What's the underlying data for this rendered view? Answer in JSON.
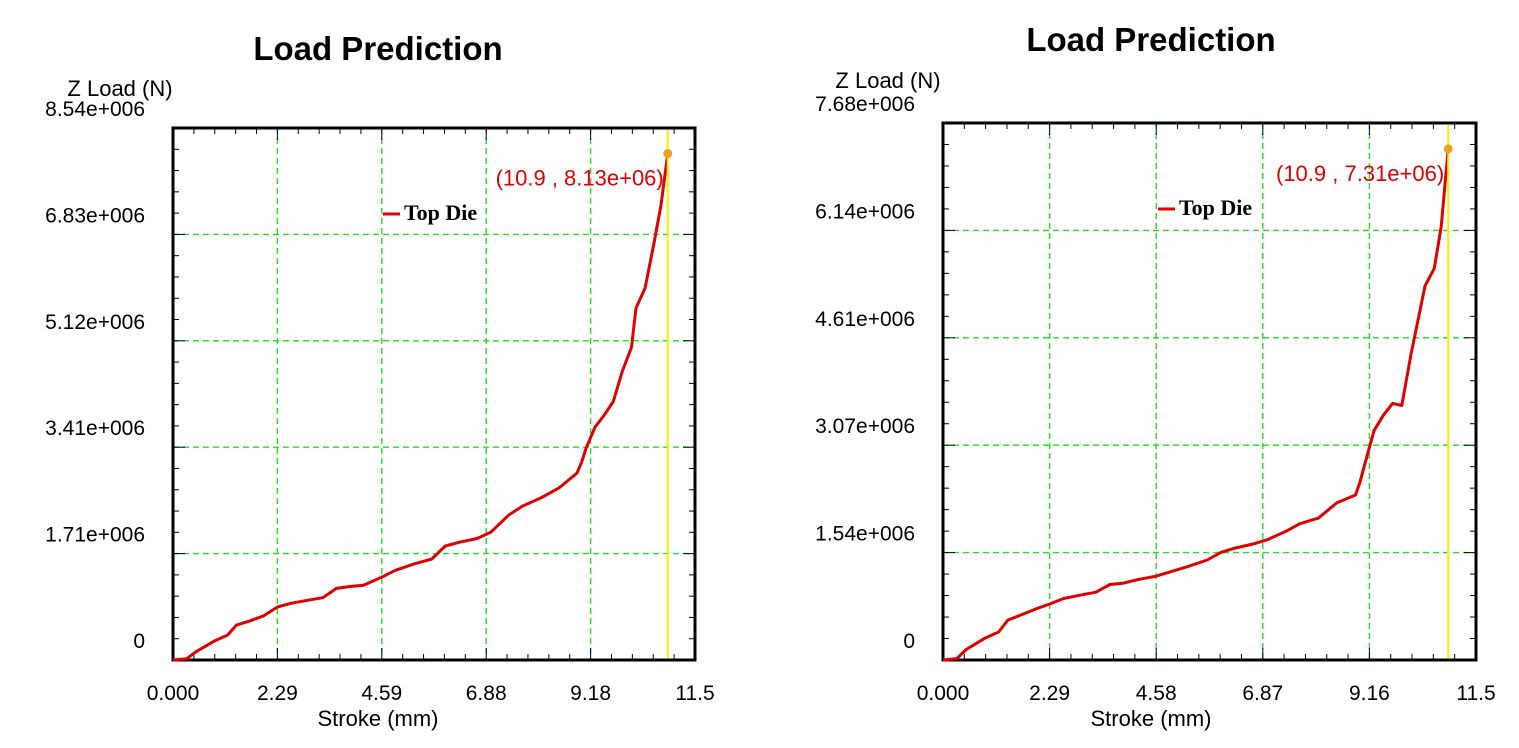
{
  "chart_data": [
    {
      "type": "line",
      "title": "Load Prediction",
      "ylabel": "Z Load (N)",
      "xlabel": "Stroke (mm)",
      "xlim": [
        0,
        11.5
      ],
      "ylim": [
        0,
        8540000
      ],
      "x_ticks": [
        "0.000",
        "2.29",
        "4.59",
        "6.88",
        "9.18",
        "11.5"
      ],
      "y_ticks": [
        "0",
        "1.71e+006",
        "3.41e+006",
        "5.12e+006",
        "6.83e+006",
        "8.54e+006"
      ],
      "grid": true,
      "legend_position": "top-center",
      "series": [
        {
          "name": "Top Die",
          "color": "#e00000",
          "x": [
            0,
            0.3,
            0.5,
            0.9,
            1.2,
            1.4,
            1.7,
            2.0,
            2.3,
            2.6,
            2.9,
            3.3,
            3.6,
            3.9,
            4.2,
            4.6,
            4.9,
            5.3,
            5.7,
            6.0,
            6.3,
            6.7,
            7.0,
            7.4,
            7.7,
            8.1,
            8.5,
            8.9,
            9.0,
            9.1,
            9.3,
            9.5,
            9.7,
            9.9,
            10.1,
            10.2,
            10.4,
            10.6,
            10.75,
            10.9
          ],
          "y": [
            0,
            20000,
            130000,
            300000,
            400000,
            560000,
            630000,
            710000,
            850000,
            910000,
            950000,
            1000000,
            1150000,
            1180000,
            1200000,
            1330000,
            1440000,
            1540000,
            1620000,
            1830000,
            1890000,
            1950000,
            2050000,
            2330000,
            2470000,
            2600000,
            2760000,
            3000000,
            3170000,
            3400000,
            3740000,
            3930000,
            4150000,
            4640000,
            5020000,
            5650000,
            5970000,
            6700000,
            7300000,
            8130000
          ]
        }
      ],
      "annotation": {
        "x": 10.9,
        "y": 8130000,
        "label": "(10.9 , 8.13e+06)",
        "color": "#e00000",
        "marker_color": "#f0a020",
        "line_color": "#f5f000"
      }
    },
    {
      "type": "line",
      "title": "Load Prediction",
      "ylabel": "Z Load (N)",
      "xlabel": "Stroke (mm)",
      "xlim": [
        0,
        11.5
      ],
      "ylim": [
        0,
        7680000
      ],
      "x_ticks": [
        "0.000",
        "2.29",
        "4.58",
        "6.87",
        "9.16",
        "11.5"
      ],
      "y_ticks": [
        "0",
        "1.54e+006",
        "3.07e+006",
        "4.61e+006",
        "6.14e+006",
        "7.68e+006"
      ],
      "grid": true,
      "legend_position": "top-center",
      "series": [
        {
          "name": "Top Die",
          "color": "#e00000",
          "x": [
            0,
            0.3,
            0.5,
            0.9,
            1.2,
            1.4,
            1.7,
            2.0,
            2.3,
            2.6,
            2.9,
            3.3,
            3.6,
            3.9,
            4.2,
            4.6,
            4.9,
            5.3,
            5.7,
            6.0,
            6.3,
            6.7,
            7.0,
            7.4,
            7.7,
            8.1,
            8.5,
            8.9,
            9.0,
            9.1,
            9.3,
            9.5,
            9.7,
            9.9,
            10.1,
            10.2,
            10.4,
            10.6,
            10.75,
            10.9
          ],
          "y": [
            0,
            20000,
            150000,
            310000,
            400000,
            570000,
            650000,
            730000,
            800000,
            880000,
            920000,
            970000,
            1080000,
            1100000,
            1150000,
            1200000,
            1260000,
            1340000,
            1430000,
            1540000,
            1600000,
            1660000,
            1720000,
            1840000,
            1950000,
            2030000,
            2250000,
            2360000,
            2550000,
            2800000,
            3280000,
            3500000,
            3670000,
            3640000,
            4380000,
            4700000,
            5350000,
            5600000,
            6200000,
            7310000
          ]
        }
      ],
      "annotation": {
        "x": 10.9,
        "y": 7310000,
        "label": "(10.9 , 7.31e+06)",
        "color": "#e00000",
        "marker_color": "#f0a020",
        "line_color": "#f5f000"
      }
    }
  ]
}
